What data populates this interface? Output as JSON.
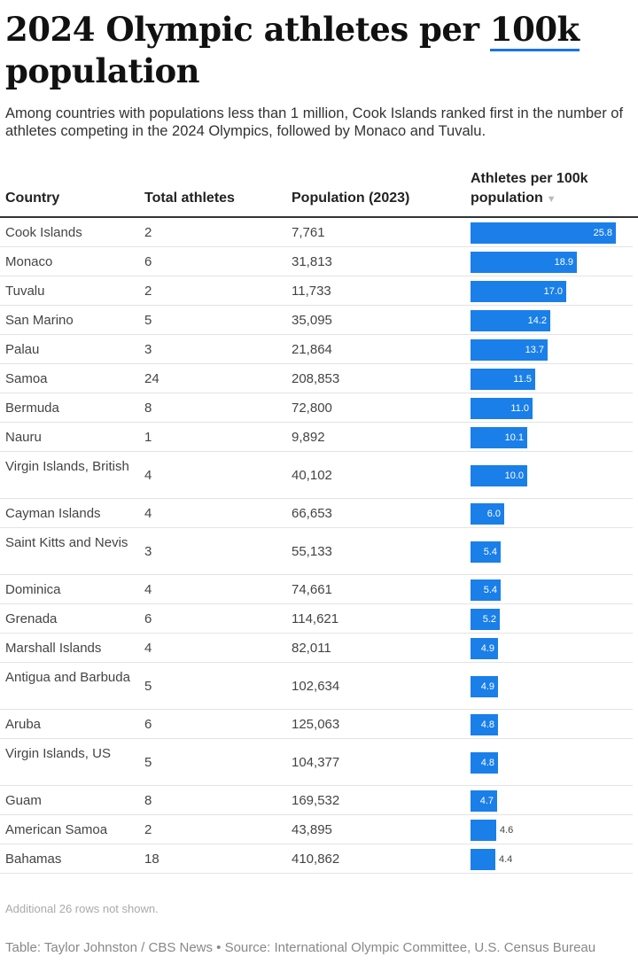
{
  "title_part1": "2024 Olympic athletes per ",
  "title_highlight": "100k",
  "title_part2": "population",
  "subtitle": "Among countries with populations less than 1 million, Cook Islands ranked first in the number of athletes competing in the 2024 Olympics, followed by Monaco and Tuvalu.",
  "columns": {
    "country": "Country",
    "total": "Total athletes",
    "population": "Population (2023)",
    "rate": "Athletes per 100k population",
    "sort_icon": "sort-desc-icon"
  },
  "colors": {
    "bar": "#1a7fe8",
    "highlight": "#1a73e8"
  },
  "chart_data": {
    "type": "table",
    "columns": [
      "Country",
      "Total athletes",
      "Population (2023)",
      "Athletes per 100k population"
    ],
    "sorted_by": "Athletes per 100k population",
    "sort_order": "descending",
    "bar_max": 25.8,
    "rows": [
      {
        "country": "Cook Islands",
        "total": "2",
        "population": "7,761",
        "rate": "25.8"
      },
      {
        "country": "Monaco",
        "total": "6",
        "population": "31,813",
        "rate": "18.9"
      },
      {
        "country": "Tuvalu",
        "total": "2",
        "population": "11,733",
        "rate": "17.0"
      },
      {
        "country": "San Marino",
        "total": "5",
        "population": "35,095",
        "rate": "14.2"
      },
      {
        "country": "Palau",
        "total": "3",
        "population": "21,864",
        "rate": "13.7"
      },
      {
        "country": "Samoa",
        "total": "24",
        "population": "208,853",
        "rate": "11.5"
      },
      {
        "country": "Bermuda",
        "total": "8",
        "population": "72,800",
        "rate": "11.0"
      },
      {
        "country": "Nauru",
        "total": "1",
        "population": "9,892",
        "rate": "10.1"
      },
      {
        "country": "Virgin Islands, British",
        "total": "4",
        "population": "40,102",
        "rate": "10.0"
      },
      {
        "country": "Cayman Islands",
        "total": "4",
        "population": "66,653",
        "rate": "6.0"
      },
      {
        "country": "Saint Kitts and Nevis",
        "total": "3",
        "population": "55,133",
        "rate": "5.4"
      },
      {
        "country": "Dominica",
        "total": "4",
        "population": "74,661",
        "rate": "5.4"
      },
      {
        "country": "Grenada",
        "total": "6",
        "population": "114,621",
        "rate": "5.2"
      },
      {
        "country": "Marshall Islands",
        "total": "4",
        "population": "82,011",
        "rate": "4.9"
      },
      {
        "country": "Antigua and Barbuda",
        "total": "5",
        "population": "102,634",
        "rate": "4.9"
      },
      {
        "country": "Aruba",
        "total": "6",
        "population": "125,063",
        "rate": "4.8"
      },
      {
        "country": "Virgin Islands, US",
        "total": "5",
        "population": "104,377",
        "rate": "4.8"
      },
      {
        "country": "Guam",
        "total": "8",
        "population": "169,532",
        "rate": "4.7"
      },
      {
        "country": "American Samoa",
        "total": "2",
        "population": "43,895",
        "rate": "4.6"
      },
      {
        "country": "Bahamas",
        "total": "18",
        "population": "410,862",
        "rate": "4.4"
      }
    ]
  },
  "note": "Additional 26 rows not shown.",
  "source": "Table: Taylor Johnston / CBS News • Source: International Olympic Committee, U.S. Census Bureau"
}
